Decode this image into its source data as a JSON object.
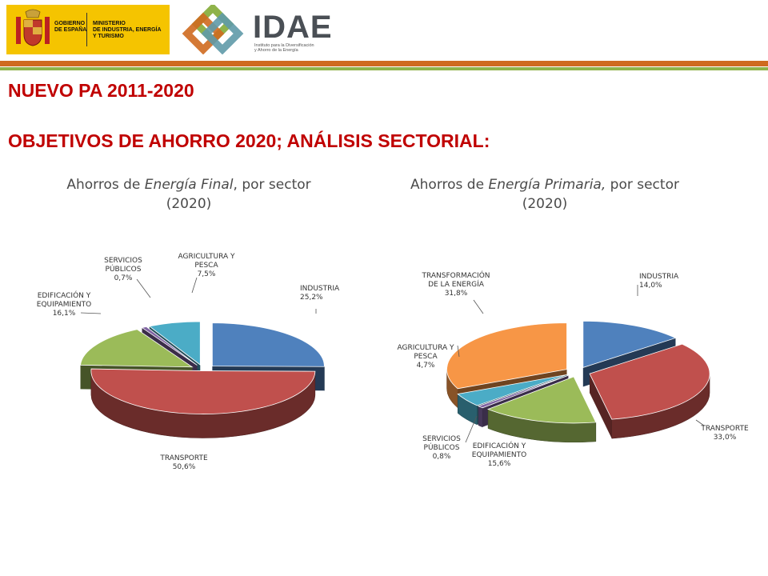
{
  "header": {
    "gobierno": "GOBIERNO\nDE ESPAÑA",
    "ministerio": "MINISTERIO\nDE INDUSTRIA, ENERGÍA\nY TURISMO",
    "idae_title": "IDAE",
    "idae_sub": "Instituto para la Diversificación\ny Ahorro de la Energía"
  },
  "heading1": "NUEVO PA 2011-2020",
  "heading2": "OBJETIVOS DE AHORRO 2020; ANÁLISIS SECTORIAL:",
  "colors": {
    "accent_red": "#c00000",
    "stripe_orange": "#cf6a1f",
    "stripe_green": "#8fb34a"
  },
  "chart_data": [
    {
      "type": "pie",
      "title_pre": "Ahorros de ",
      "title_em": "Energía Final",
      "title_post": ", por sector",
      "title_line2": "(2020)",
      "labels": [
        "INDUSTRIA",
        "TRANSPORTE",
        "EDIFICACIÓN Y EQUIPAMIENTO",
        "SERVICIOS PÚBLICOS",
        "AGRICULTURA Y PESCA"
      ],
      "values": [
        25.2,
        50.6,
        16.1,
        0.7,
        7.5
      ],
      "value_labels": [
        "25,2%",
        "50,6%",
        "16,1%",
        "0,7%",
        "7,5%"
      ],
      "colors": [
        "#4f81bd",
        "#c0504d",
        "#9bbb59",
        "#8064a2",
        "#4bacc6"
      ],
      "legend": "none",
      "style": "3d-exploded"
    },
    {
      "type": "pie",
      "title_pre": "Ahorros de ",
      "title_em": "Energía Primaria,",
      "title_post": " por sector",
      "title_line2": "(2020)",
      "labels": [
        "INDUSTRIA",
        "TRANSPORTE",
        "EDIFICACIÓN Y EQUIPAMIENTO",
        "SERVICIOS PÚBLICOS",
        "AGRICULTURA Y PESCA",
        "TRANSFORMACIÓN DE LA ENERGÍA"
      ],
      "values": [
        14.0,
        33.0,
        15.6,
        0.8,
        4.7,
        31.8
      ],
      "value_labels": [
        "14,0%",
        "33,0%",
        "15,6%",
        "0,8%",
        "4,7%",
        "31,8%"
      ],
      "colors": [
        "#4f81bd",
        "#c0504d",
        "#9bbb59",
        "#8064a2",
        "#4bacc6",
        "#f79646"
      ],
      "legend": "none",
      "style": "3d-exploded"
    }
  ]
}
